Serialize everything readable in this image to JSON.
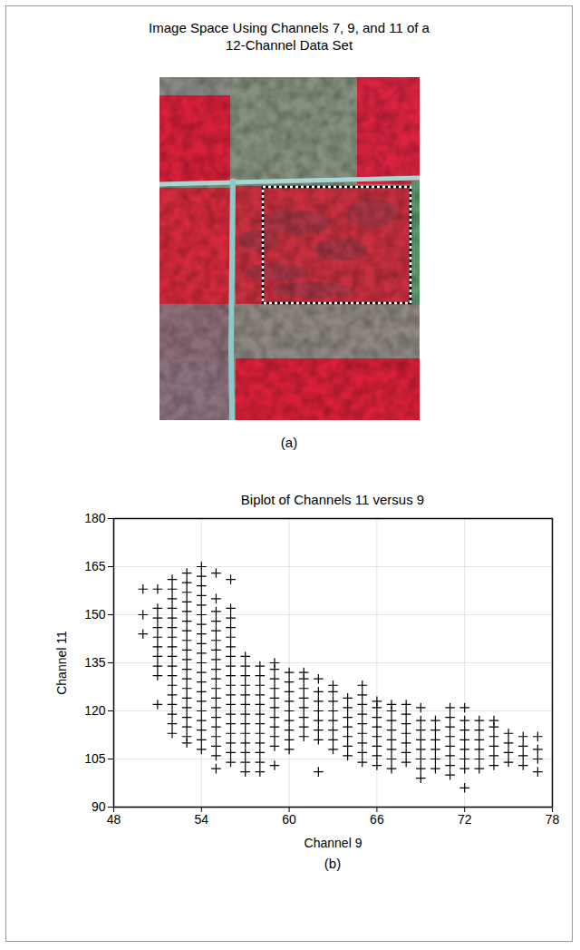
{
  "image_panel": {
    "title": "Image Space Using Channels 7, 9, and 11 of a 12-Channel Data Set",
    "panel_label": "(a)"
  },
  "chart_data": {
    "type": "scatter",
    "title": "Biplot of Channels 11 versus 9",
    "panel_label": "(b)",
    "x_label": "Channel 9",
    "y_label": "Channel 11",
    "xlim": [
      48,
      78
    ],
    "xticks": [
      48,
      54,
      60,
      66,
      72,
      78
    ],
    "ylim": [
      90,
      180
    ],
    "yticks": [
      90,
      105,
      120,
      135,
      150,
      165,
      180
    ],
    "grid": true,
    "marker": "plus",
    "color": "#000000",
    "points": [
      {
        "x": 50,
        "y": [
          144,
          150,
          158
        ]
      },
      {
        "x": 51,
        "y": [
          122,
          131,
          134,
          137,
          140,
          143,
          146,
          149,
          152,
          158
        ]
      },
      {
        "x": 52,
        "y": [
          113,
          116,
          119,
          122,
          125,
          128,
          131,
          134,
          137,
          140,
          143,
          146,
          149,
          152,
          155,
          158,
          161
        ]
      },
      {
        "x": 53,
        "y": [
          110,
          112,
          115,
          118,
          121,
          124,
          127,
          130,
          133,
          136,
          139,
          142,
          145,
          148,
          151,
          154,
          157,
          160,
          163
        ]
      },
      {
        "x": 54,
        "y": [
          108,
          111,
          114,
          117,
          120,
          123,
          126,
          129,
          132,
          135,
          138,
          141,
          144,
          147,
          150,
          153,
          156,
          159,
          162,
          165
        ]
      },
      {
        "x": 55,
        "y": [
          102,
          106,
          109,
          112,
          115,
          118,
          121,
          124,
          127,
          130,
          133,
          136,
          139,
          142,
          145,
          148,
          151,
          155,
          163
        ]
      },
      {
        "x": 56,
        "y": [
          104,
          107,
          110,
          113,
          116,
          119,
          122,
          125,
          128,
          131,
          134,
          137,
          140,
          143,
          146,
          149,
          152,
          161
        ]
      },
      {
        "x": 57,
        "y": [
          101,
          104,
          107,
          110,
          113,
          116,
          119,
          122,
          125,
          128,
          131,
          134,
          137
        ]
      },
      {
        "x": 58,
        "y": [
          101,
          104,
          107,
          110,
          113,
          116,
          119,
          122,
          125,
          128,
          131,
          134
        ]
      },
      {
        "x": 59,
        "y": [
          103,
          109,
          112,
          115,
          118,
          121,
          124,
          127,
          130,
          133,
          135
        ]
      },
      {
        "x": 60,
        "y": [
          108,
          111,
          114,
          117,
          120,
          123,
          126,
          129,
          132
        ]
      },
      {
        "x": 61,
        "y": [
          112,
          115,
          118,
          121,
          124,
          127,
          130,
          132
        ]
      },
      {
        "x": 62,
        "y": [
          101,
          111,
          114,
          117,
          120,
          123,
          126,
          130
        ]
      },
      {
        "x": 63,
        "y": [
          108,
          111,
          114,
          117,
          120,
          123,
          126,
          128
        ]
      },
      {
        "x": 64,
        "y": [
          106,
          109,
          112,
          115,
          118,
          121,
          124
        ]
      },
      {
        "x": 65,
        "y": [
          104,
          107,
          110,
          113,
          116,
          119,
          122,
          125,
          128
        ]
      },
      {
        "x": 66,
        "y": [
          103,
          106,
          109,
          112,
          115,
          118,
          121,
          123
        ]
      },
      {
        "x": 67,
        "y": [
          102,
          105,
          108,
          111,
          114,
          117,
          120,
          122
        ]
      },
      {
        "x": 68,
        "y": [
          104,
          107,
          110,
          113,
          116,
          119,
          122
        ]
      },
      {
        "x": 69,
        "y": [
          99,
          102,
          105,
          108,
          111,
          114,
          117,
          121
        ]
      },
      {
        "x": 70,
        "y": [
          102,
          105,
          108,
          111,
          114,
          117
        ]
      },
      {
        "x": 71,
        "y": [
          100,
          103,
          106,
          109,
          112,
          115,
          118,
          121
        ]
      },
      {
        "x": 72,
        "y": [
          96,
          102,
          105,
          108,
          111,
          114,
          117,
          121
        ]
      },
      {
        "x": 73,
        "y": [
          102,
          105,
          108,
          111,
          114,
          117
        ]
      },
      {
        "x": 74,
        "y": [
          103,
          106,
          109,
          112,
          115,
          117
        ]
      },
      {
        "x": 75,
        "y": [
          104,
          107,
          110,
          113
        ]
      },
      {
        "x": 76,
        "y": [
          103,
          106,
          109,
          112
        ]
      },
      {
        "x": 77,
        "y": [
          101,
          105,
          108,
          112
        ]
      }
    ]
  }
}
